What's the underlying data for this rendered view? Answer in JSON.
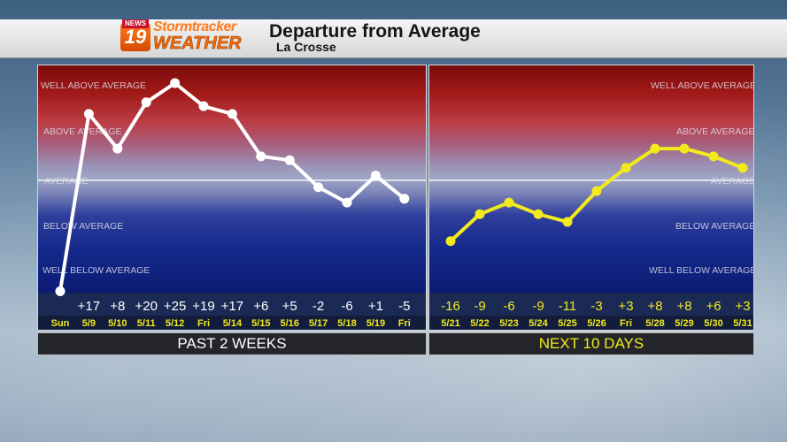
{
  "header": {
    "logo_news": "NEWS",
    "logo_number": "19",
    "logo_storm": "Stormtracker",
    "logo_weather": "WEATHER",
    "title": "Departure from Average",
    "location": "La Crosse"
  },
  "levels": {
    "well_above": "WELL ABOVE AVERAGE",
    "above": "ABOVE AVERAGE",
    "average": "AVERAGE",
    "below": "BELOW AVERAGE",
    "well_below": "WELL BELOW AVERAGE"
  },
  "colors": {
    "past_line": "#ffffff",
    "future_line": "#f2ea1d",
    "past_text": "#ffffff",
    "future_text": "#f2ea1d",
    "date_past": "#f2ea1d",
    "date_future": "#f2ea1d"
  },
  "sections": {
    "past_label": "PAST 2 WEEKS",
    "future_label": "NEXT 10 DAYS"
  },
  "chart_data": {
    "type": "line",
    "title": "Departure from Average",
    "subtitle": "La Crosse",
    "ylim": [
      -30,
      30
    ],
    "series": [
      {
        "name": "PAST 2 WEEKS",
        "x": [
          "Sun",
          "5/9",
          "5/10",
          "5/11",
          "5/12",
          "Fri",
          "5/14",
          "5/15",
          "5/16",
          "5/17",
          "5/18",
          "5/19",
          "Fri"
        ],
        "labels": [
          "",
          "+17",
          "+8",
          "+20",
          "+25",
          "+19",
          "+17",
          "+6",
          "+5",
          "-2",
          "-6",
          "+1",
          "-5"
        ],
        "values": [
          -29,
          17,
          8,
          20,
          25,
          19,
          17,
          6,
          5,
          -2,
          -6,
          1,
          -5
        ]
      },
      {
        "name": "NEXT 10 DAYS",
        "x": [
          "5/21",
          "5/22",
          "5/23",
          "5/24",
          "5/25",
          "5/26",
          "Fri",
          "5/28",
          "5/29",
          "5/30",
          "5/31"
        ],
        "labels": [
          "-16",
          "-9",
          "-6",
          "-9",
          "-11",
          "-3",
          "+3",
          "+8",
          "+8",
          "+6",
          "+3"
        ],
        "values": [
          -16,
          -9,
          -6,
          -9,
          -11,
          -3,
          3,
          8,
          8,
          6,
          3
        ]
      }
    ]
  }
}
